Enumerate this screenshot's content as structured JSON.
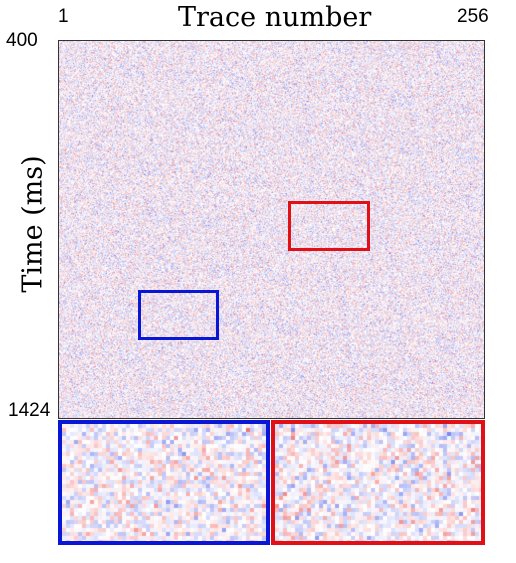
{
  "title": "Trace number",
  "ylabel": "Time (ms)",
  "x_ticks": {
    "start": "1",
    "end": "256"
  },
  "y_ticks": {
    "start": "400",
    "end": "1424"
  },
  "colors": {
    "positive": "#e8393a",
    "negative": "#3b4fe6",
    "blue_box": "#0a16d6",
    "red_box": "#e01016"
  },
  "colormap": "seismic (blue-white-red)"
}
